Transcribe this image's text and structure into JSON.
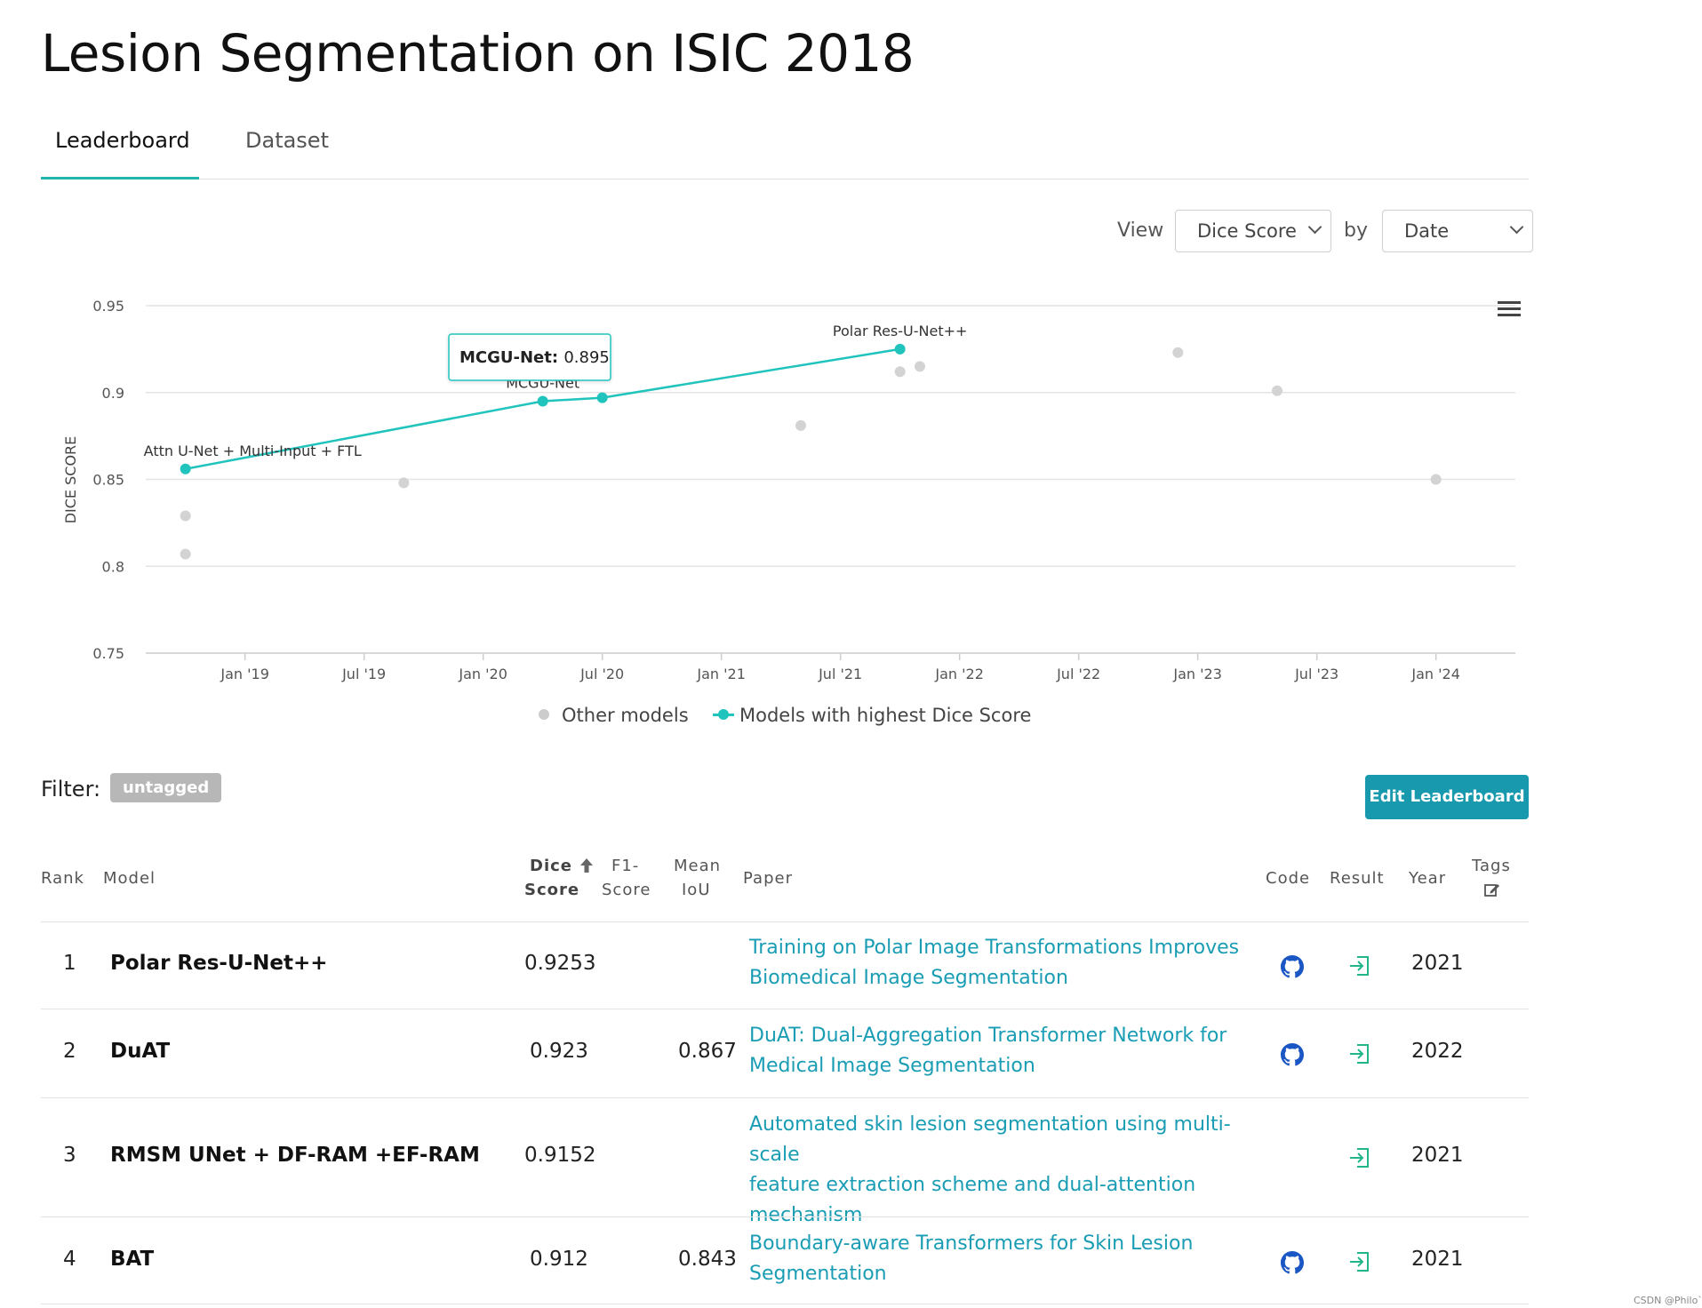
{
  "page": {
    "title": "Lesion Segmentation on ISIC 2018"
  },
  "tabs": [
    {
      "label": "Leaderboard"
    },
    {
      "label": "Dataset"
    }
  ],
  "view": {
    "view_label": "View",
    "metric": "Dice Score",
    "by_label": "by",
    "by": "Date"
  },
  "chart_data": {
    "type": "scatter",
    "title": "",
    "xlabel": "",
    "ylabel": "DICE SCORE",
    "ylim": [
      0.75,
      0.95
    ],
    "yticks": [
      "0.95",
      "0.9",
      "0.85",
      "0.8",
      "0.75"
    ],
    "xticks": [
      "Jan '19",
      "Jul '19",
      "Jan '20",
      "Jul '20",
      "Jan '21",
      "Jul '21",
      "Jan '22",
      "Jul '22",
      "Jan '23",
      "Jul '23",
      "Jan '24"
    ],
    "series": [
      {
        "name": "Models with highest Dice Score",
        "color": "#21c4bd",
        "points": [
          {
            "x": "2018-10",
            "y": 0.856,
            "label": "Attn U-Net + Multi-Input + FTL"
          },
          {
            "x": "2020-04",
            "y": 0.895,
            "label": "MCGU-Net"
          },
          {
            "x": "2020-07",
            "y": 0.897,
            "label": ""
          },
          {
            "x": "2021-10",
            "y": 0.925,
            "label": "Polar Res-U-Net++"
          }
        ]
      },
      {
        "name": "Other models",
        "color": "#d3d3d3",
        "points": [
          {
            "x": "2018-10",
            "y": 0.829
          },
          {
            "x": "2018-10",
            "y": 0.807
          },
          {
            "x": "2019-09",
            "y": 0.848
          },
          {
            "x": "2021-05",
            "y": 0.881
          },
          {
            "x": "2021-10",
            "y": 0.912
          },
          {
            "x": "2021-11",
            "y": 0.915
          },
          {
            "x": "2022-12",
            "y": 0.923
          },
          {
            "x": "2023-05",
            "y": 0.901
          },
          {
            "x": "2024-01",
            "y": 0.85
          }
        ]
      }
    ],
    "tooltip": {
      "model": "MCGU-Net",
      "value": "0.895"
    },
    "legend": [
      "Other models",
      "Models with highest Dice Score"
    ],
    "legend_position": "bottom"
  },
  "filter": {
    "label": "Filter:",
    "tag": "untagged"
  },
  "edit_button": "Edit Leaderboard",
  "table": {
    "headers": {
      "rank": "Rank",
      "model": "Model",
      "dice1": "Dice",
      "dice2": "Score",
      "f1a": "F1-",
      "f1b": "Score",
      "iou1": "Mean",
      "iou2": "IoU",
      "paper": "Paper",
      "code": "Code",
      "result": "Result",
      "year": "Year",
      "tags": "Tags"
    },
    "rows": [
      {
        "rank": "1",
        "model": "Polar Res-U-Net++",
        "dice": "0.9253",
        "f1": "",
        "iou": "",
        "paper_line1": "Training on Polar Image Transformations Improves",
        "paper_line2": "Biomedical Image Segmentation",
        "paper_line3": "",
        "has_code": true,
        "year": "2021"
      },
      {
        "rank": "2",
        "model": "DuAT",
        "dice": "0.923",
        "f1": "",
        "iou": "0.867",
        "paper_line1": "DuAT: Dual-Aggregation Transformer Network for",
        "paper_line2": "Medical Image Segmentation",
        "paper_line3": "",
        "has_code": true,
        "year": "2022"
      },
      {
        "rank": "3",
        "model": "RMSM UNet + DF-RAM +EF-RAM",
        "dice": "0.9152",
        "f1": "",
        "iou": "",
        "paper_line1": "Automated skin lesion segmentation using multi-scale",
        "paper_line2": "feature extraction scheme and dual-attention",
        "paper_line3": "mechanism",
        "has_code": false,
        "year": "2021"
      },
      {
        "rank": "4",
        "model": "BAT",
        "dice": "0.912",
        "f1": "",
        "iou": "0.843",
        "paper_line1": "Boundary-aware Transformers for Skin Lesion",
        "paper_line2": "Segmentation",
        "paper_line3": "",
        "has_code": true,
        "year": "2021"
      }
    ]
  },
  "watermark": "CSDN @Philo`"
}
